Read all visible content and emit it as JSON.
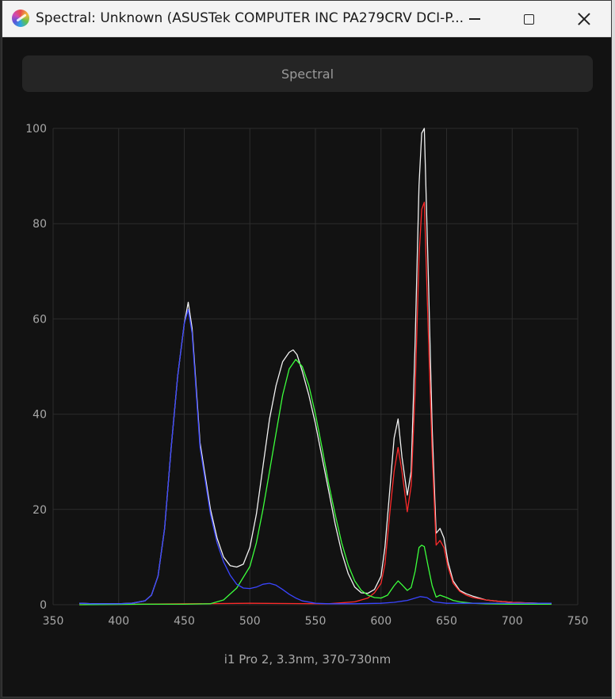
{
  "window": {
    "title": "Spectral: Unknown (ASUSTek COMPUTER INC PA279CRV DCI-P...",
    "app_icon": "colorimeter-app-icon"
  },
  "header": {
    "label": "Spectral"
  },
  "footer": {
    "label": "i1 Pro 2, 3.3nm, 370-730nm"
  },
  "colors": {
    "background": "#121212",
    "grid": "#2c2c2c",
    "tick_text": "#a8a8a8",
    "total": "#f2f2f2",
    "red": "#ff2a2a",
    "green": "#3cff3c",
    "blue": "#3a45ff"
  },
  "chart_data": {
    "type": "line",
    "title": "",
    "xlabel": "",
    "ylabel": "",
    "xlim": [
      350,
      750
    ],
    "ylim": [
      0,
      100
    ],
    "xticks": [
      350,
      400,
      450,
      500,
      550,
      600,
      650,
      700,
      750
    ],
    "yticks": [
      0,
      20,
      40,
      60,
      80,
      100
    ],
    "grid": true,
    "legend": "none",
    "series": [
      {
        "key": "total",
        "x": [
          370,
          380,
          400,
          410,
          420,
          425,
          430,
          435,
          440,
          445,
          450,
          453,
          456,
          459,
          462,
          466,
          470,
          475,
          480,
          485,
          490,
          495,
          500,
          505,
          510,
          515,
          520,
          525,
          530,
          533,
          536,
          540,
          545,
          550,
          555,
          560,
          565,
          570,
          575,
          580,
          585,
          590,
          595,
          600,
          603,
          607,
          610,
          613,
          616,
          620,
          623,
          626,
          629,
          631,
          633,
          636,
          639,
          642,
          645,
          648,
          651,
          655,
          660,
          665,
          670,
          680,
          690,
          700,
          710,
          720,
          730
        ],
        "y": [
          0.3,
          0.2,
          0.2,
          0.3,
          0.8,
          2,
          6,
          16,
          33,
          48,
          59,
          63.5,
          58,
          46,
          34,
          27,
          20,
          14,
          10,
          8.2,
          7.9,
          8.5,
          12,
          19,
          29,
          39,
          46,
          51,
          53,
          53.5,
          52.5,
          49,
          44,
          38,
          31,
          24,
          17,
          11,
          6.5,
          3.7,
          2.5,
          2.4,
          3.2,
          6,
          12,
          25,
          35,
          39,
          31,
          23,
          28,
          55,
          88,
          99,
          100,
          70,
          37,
          15,
          16,
          14,
          9,
          5,
          3,
          2.3,
          1.8,
          1,
          0.7,
          0.5,
          0.4,
          0.3,
          0.3
        ]
      },
      {
        "key": "red",
        "x": [
          370,
          500,
          560,
          580,
          590,
          595,
          600,
          603,
          607,
          610,
          613,
          616,
          620,
          623,
          626,
          629,
          631,
          633,
          636,
          639,
          642,
          645,
          648,
          651,
          655,
          660,
          665,
          670,
          680,
          690,
          700,
          710,
          720,
          730
        ],
        "y": [
          0,
          0.3,
          0.2,
          0.6,
          1.4,
          2.5,
          4.5,
          8.5,
          20,
          28,
          33,
          28,
          19.5,
          25,
          45,
          73,
          83,
          84.5,
          58,
          32,
          12.5,
          13.5,
          12,
          8,
          4.5,
          2.8,
          2,
          1.5,
          1,
          0.7,
          0.5,
          0.4,
          0.3,
          0.3
        ]
      },
      {
        "key": "green",
        "x": [
          370,
          420,
          450,
          470,
          480,
          490,
          500,
          505,
          510,
          515,
          520,
          525,
          530,
          535,
          540,
          545,
          550,
          555,
          560,
          565,
          570,
          575,
          580,
          585,
          590,
          595,
          600,
          605,
          610,
          613,
          616,
          620,
          623,
          626,
          629,
          631,
          633,
          636,
          639,
          642,
          645,
          650,
          655,
          660,
          670,
          680,
          700,
          730
        ],
        "y": [
          0,
          0.1,
          0.1,
          0.2,
          1,
          3.5,
          8,
          13,
          20,
          28,
          36,
          44,
          49.5,
          51.5,
          50,
          46,
          40,
          33,
          25.5,
          19,
          13,
          8.3,
          5,
          3,
          2,
          1.5,
          1.4,
          2,
          4,
          5,
          4.2,
          3,
          3.6,
          7,
          12,
          12.5,
          12.2,
          8,
          4,
          1.6,
          2,
          1.5,
          0.9,
          0.6,
          0.3,
          0.2,
          0.1,
          0.1
        ]
      },
      {
        "key": "blue",
        "x": [
          370,
          380,
          400,
          410,
          420,
          425,
          430,
          435,
          440,
          445,
          450,
          453,
          456,
          459,
          462,
          466,
          470,
          475,
          480,
          485,
          490,
          495,
          500,
          505,
          510,
          515,
          520,
          525,
          530,
          535,
          540,
          550,
          560,
          580,
          600,
          610,
          620,
          630,
          635,
          640,
          650,
          700,
          730
        ],
        "y": [
          0.3,
          0.2,
          0.2,
          0.3,
          0.8,
          2,
          6,
          16,
          33,
          48,
          59,
          62,
          57,
          45,
          33,
          26,
          19,
          13,
          9,
          6.2,
          4.3,
          3.5,
          3.4,
          3.7,
          4.3,
          4.5,
          4.1,
          3.2,
          2.2,
          1.4,
          0.8,
          0.3,
          0.2,
          0.2,
          0.3,
          0.5,
          0.9,
          1.7,
          1.5,
          0.6,
          0.3,
          0.3,
          0.3
        ]
      }
    ]
  }
}
